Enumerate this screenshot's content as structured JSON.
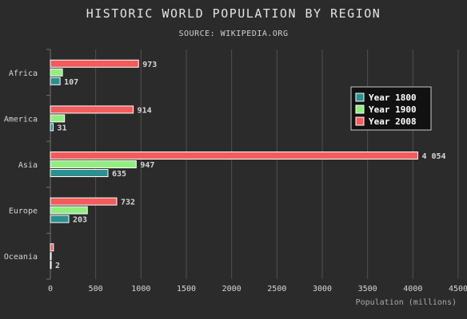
{
  "chart_data": {
    "type": "bar",
    "orientation": "horizontal",
    "title": "HISTORIC WORLD POPULATION BY REGION",
    "subtitle": "SOURCE: WIKIPEDIA.ORG",
    "categories": [
      "Africa",
      "America",
      "Asia",
      "Europe",
      "Oceania"
    ],
    "series": [
      {
        "name": "Year 1800",
        "color": "#2b908f",
        "values": [
          107,
          31,
          635,
          203,
          2
        ]
      },
      {
        "name": "Year 1900",
        "color": "#90ee7e",
        "values": [
          133,
          156,
          947,
          408,
          6
        ]
      },
      {
        "name": "Year 2008",
        "color": "#f45b5b",
        "values": [
          973,
          914,
          4054,
          732,
          34
        ]
      }
    ],
    "data_labels": [
      [
        "107",
        "31",
        "635",
        "203",
        "2"
      ],
      [
        "",
        "",
        "947",
        "",
        ""
      ],
      [
        "973",
        "914",
        "4 054",
        "732",
        ""
      ]
    ],
    "xlabel": "Population (millions)",
    "ylabel": "",
    "xlim": [
      0,
      4500
    ],
    "xticks": [
      "0",
      "500",
      "1000",
      "1500",
      "2000",
      "2500",
      "3000",
      "3500",
      "4000",
      "4500"
    ],
    "grid": true,
    "legend_position": "right",
    "colors": {
      "background": "#2b2b2b",
      "grid": "#505053",
      "text": "#e0e0e3"
    }
  }
}
